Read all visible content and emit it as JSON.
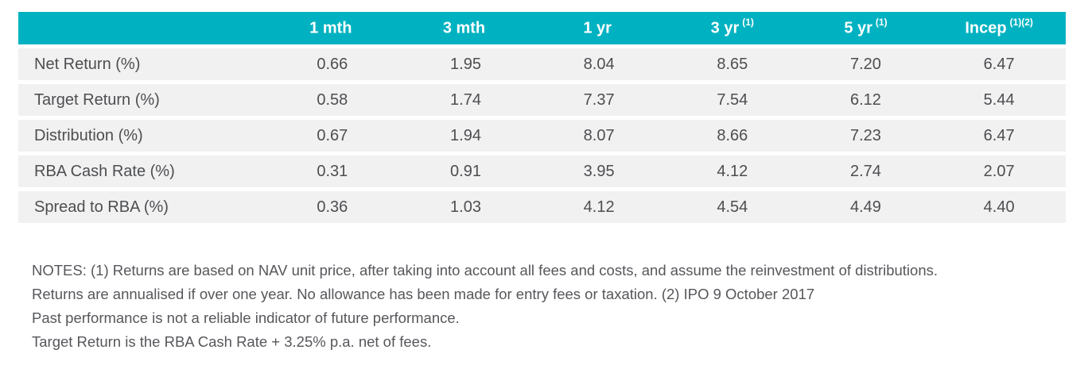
{
  "colors": {
    "header_bg": "#00b2c1",
    "header_text": "#ffffff",
    "row_bg": "#f1f1f2",
    "cell_text": "#4d4e50",
    "notes_text": "#56575b",
    "page_bg": "#ffffff"
  },
  "table": {
    "header": {
      "col0": "",
      "cols": [
        {
          "label": "1 mth",
          "sup": ""
        },
        {
          "label": "3 mth",
          "sup": ""
        },
        {
          "label": "1 yr",
          "sup": ""
        },
        {
          "label": "3 yr",
          "sup": "(1)"
        },
        {
          "label": "5 yr",
          "sup": "(1)"
        },
        {
          "label": "Incep",
          "sup": "(1)(2)"
        }
      ]
    },
    "rows": [
      {
        "label": "Net Return (%)",
        "values": [
          "0.66",
          "1.95",
          "8.04",
          "8.65",
          "7.20",
          "6.47"
        ]
      },
      {
        "label": "Target Return (%)",
        "values": [
          "0.58",
          "1.74",
          "7.37",
          "7.54",
          "6.12",
          "5.44"
        ]
      },
      {
        "label": "Distribution (%)",
        "values": [
          "0.67",
          "1.94",
          "8.07",
          "8.66",
          "7.23",
          "6.47"
        ]
      },
      {
        "label": "RBA Cash Rate (%)",
        "values": [
          "0.31",
          "0.91",
          "3.95",
          "4.12",
          "2.74",
          "2.07"
        ]
      },
      {
        "label": "Spread to RBA (%)",
        "values": [
          "0.36",
          "1.03",
          "4.12",
          "4.54",
          "4.49",
          "4.40"
        ]
      }
    ]
  },
  "notes": {
    "lines": [
      "NOTES: (1) Returns are based on NAV unit price, after taking into account all fees and costs, and assume the reinvestment of distributions.",
      "Returns are annualised if over one year. No allowance has been made for entry fees or taxation. (2) IPO 9 October 2017",
      "Past performance is not a reliable indicator of future performance.",
      "Target Return is the RBA Cash Rate + 3.25% p.a. net of fees."
    ]
  },
  "chart_data": {
    "type": "table",
    "title": "Fund performance returns",
    "categories": [
      "1 mth",
      "3 mth",
      "1 yr",
      "3 yr",
      "5 yr",
      "Incep"
    ],
    "series": [
      {
        "name": "Net Return (%)",
        "values": [
          0.66,
          1.95,
          8.04,
          8.65,
          7.2,
          6.47
        ]
      },
      {
        "name": "Target Return (%)",
        "values": [
          0.58,
          1.74,
          7.37,
          7.54,
          6.12,
          5.44
        ]
      },
      {
        "name": "Distribution (%)",
        "values": [
          0.67,
          1.94,
          8.07,
          8.66,
          7.23,
          6.47
        ]
      },
      {
        "name": "RBA Cash Rate (%)",
        "values": [
          0.31,
          0.91,
          3.95,
          4.12,
          2.74,
          2.07
        ]
      },
      {
        "name": "Spread to RBA (%)",
        "values": [
          0.36,
          1.03,
          4.12,
          4.54,
          4.49,
          4.4
        ]
      }
    ]
  }
}
